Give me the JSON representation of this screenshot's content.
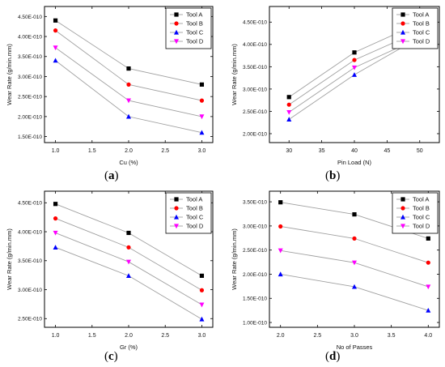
{
  "legend_labels": [
    "Tool A",
    "Tool B",
    "Tool C",
    "Tool D"
  ],
  "chart_data": [
    {
      "type": "line",
      "panel_label": "a",
      "xlabel": "Cu (%)",
      "ylabel": "Wear Rate (g/min.mm)",
      "x": [
        1.0,
        2.0,
        3.0
      ],
      "xticks": [
        "1.0",
        "1.5",
        "2.0",
        "2.5",
        "3.0"
      ],
      "xtick_values": [
        1.0,
        1.5,
        2.0,
        2.5,
        3.0
      ],
      "xlim": [
        0.85,
        3.15
      ],
      "yticks": [
        "1.50E-010",
        "2.00E-010",
        "2.50E-010",
        "3.00E-010",
        "3.50E-010",
        "4.00E-010",
        "4.50E-010"
      ],
      "ytick_values": [
        1.5e-10,
        2e-10,
        2.5e-10,
        3e-10,
        3.5e-10,
        4e-10,
        4.5e-10
      ],
      "ylim": [
        1.35e-10,
        4.75e-10
      ],
      "legend_position": "top-right",
      "series": [
        {
          "name": "Tool A",
          "values": [
            4.4e-10,
            3.2e-10,
            2.8e-10
          ]
        },
        {
          "name": "Tool B",
          "values": [
            4.15e-10,
            2.8e-10,
            2.4e-10
          ]
        },
        {
          "name": "Tool C",
          "values": [
            3.4e-10,
            2e-10,
            1.6e-10
          ]
        },
        {
          "name": "Tool D",
          "values": [
            3.72e-10,
            2.4e-10,
            2e-10
          ]
        }
      ]
    },
    {
      "type": "line",
      "panel_label": "b",
      "xlabel": "Pin Load (N)",
      "ylabel": "Wear Rate (g/min.mm)",
      "x": [
        30,
        40,
        50
      ],
      "xticks": [
        "30",
        "35",
        "40",
        "45",
        "50"
      ],
      "xtick_values": [
        30,
        35,
        40,
        45,
        50
      ],
      "xlim": [
        27,
        53
      ],
      "yticks": [
        "2.00E-010",
        "2.50E-010",
        "3.00E-010",
        "3.50E-010",
        "4.00E-010",
        "4.50E-010"
      ],
      "ytick_values": [
        2e-10,
        2.5e-10,
        3e-10,
        3.5e-10,
        4e-10,
        4.5e-10
      ],
      "ylim": [
        1.8e-10,
        4.85e-10
      ],
      "legend_position": "top-right",
      "series": [
        {
          "name": "Tool A",
          "values": [
            2.82e-10,
            3.82e-10,
            4.48e-10
          ]
        },
        {
          "name": "Tool B",
          "values": [
            2.65e-10,
            3.65e-10,
            4.3e-10
          ]
        },
        {
          "name": "Tool C",
          "values": [
            2.32e-10,
            3.32e-10,
            4.16e-10
          ]
        },
        {
          "name": "Tool D",
          "values": [
            2.48e-10,
            3.48e-10,
            4.15e-10
          ]
        }
      ]
    },
    {
      "type": "line",
      "panel_label": "c",
      "xlabel": "Gr (%)",
      "ylabel": "Wear Rate (g/min.mm)",
      "x": [
        1.0,
        2.0,
        3.0
      ],
      "xticks": [
        "1.0",
        "1.5",
        "2.0",
        "2.5",
        "3.0"
      ],
      "xtick_values": [
        1.0,
        1.5,
        2.0,
        2.5,
        3.0
      ],
      "xlim": [
        0.85,
        3.15
      ],
      "yticks": [
        "2.50E-010",
        "3.00E-010",
        "3.50E-010",
        "4.00E-010",
        "4.50E-010"
      ],
      "ytick_values": [
        2.5e-10,
        3e-10,
        3.5e-10,
        4e-10,
        4.5e-10
      ],
      "ylim": [
        2.35e-10,
        4.7e-10
      ],
      "legend_position": "top-right",
      "series": [
        {
          "name": "Tool A",
          "values": [
            4.48e-10,
            3.98e-10,
            3.24e-10
          ]
        },
        {
          "name": "Tool B",
          "values": [
            4.23e-10,
            3.73e-10,
            2.99e-10
          ]
        },
        {
          "name": "Tool C",
          "values": [
            3.73e-10,
            3.24e-10,
            2.49e-10
          ]
        },
        {
          "name": "Tool D",
          "values": [
            3.98e-10,
            3.48e-10,
            2.74e-10
          ]
        }
      ]
    },
    {
      "type": "line",
      "panel_label": "d",
      "xlabel": "No of Passes",
      "ylabel": "Wear Rate (g/min.mm)",
      "x": [
        2.0,
        3.0,
        4.0
      ],
      "xticks": [
        "2.0",
        "2.5",
        "3.0",
        "3.5",
        "4.0"
      ],
      "xtick_values": [
        2.0,
        2.5,
        3.0,
        3.5,
        4.0
      ],
      "xlim": [
        1.85,
        4.15
      ],
      "yticks": [
        "1.00E-010",
        "1.50E-010",
        "2.00E-010",
        "2.50E-010",
        "3.00E-010",
        "3.50E-010"
      ],
      "ytick_values": [
        1e-10,
        1.5e-10,
        2e-10,
        2.5e-10,
        3e-10,
        3.5e-10
      ],
      "ylim": [
        9e-11,
        3.72e-10
      ],
      "legend_position": "top-right",
      "series": [
        {
          "name": "Tool A",
          "values": [
            3.49e-10,
            3.24e-10,
            2.74e-10
          ]
        },
        {
          "name": "Tool B",
          "values": [
            2.99e-10,
            2.74e-10,
            2.24e-10
          ]
        },
        {
          "name": "Tool C",
          "values": [
            2e-10,
            1.74e-10,
            1.25e-10
          ]
        },
        {
          "name": "Tool D",
          "values": [
            2.49e-10,
            2.24e-10,
            1.74e-10
          ]
        }
      ]
    }
  ],
  "style": {
    "series_colors": [
      "#000000",
      "#ff0000",
      "#0000ff",
      "#ff00ff"
    ],
    "series_markers": [
      "square",
      "circle",
      "triangle-up",
      "triangle-down"
    ],
    "line_color": "#a0a0a0"
  }
}
